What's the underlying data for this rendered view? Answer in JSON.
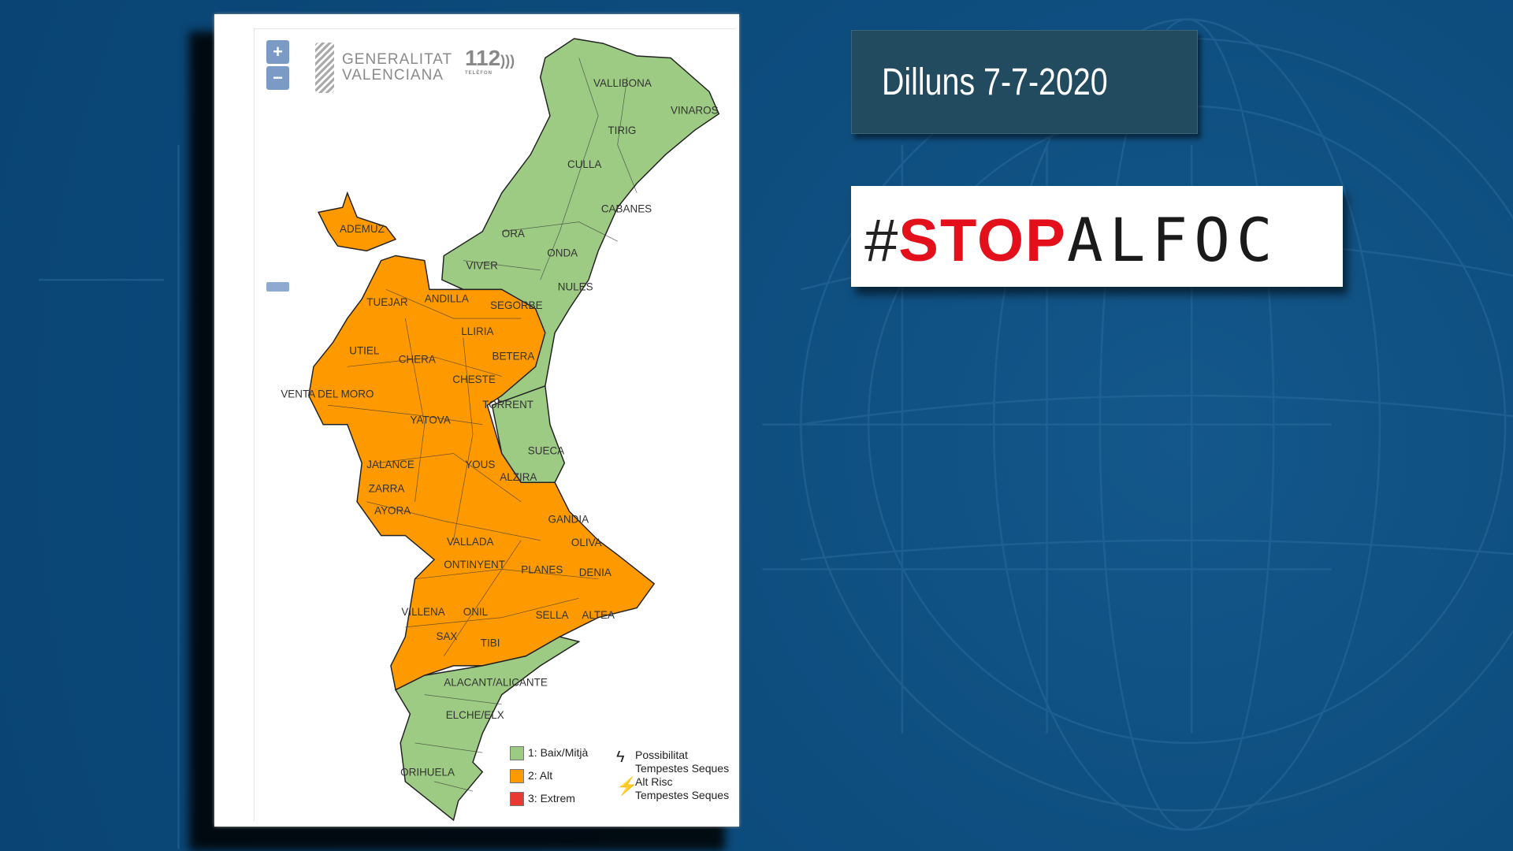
{
  "date_label": "Dilluns 7-7-2020",
  "campaign": {
    "hash": "#",
    "red": "STOP",
    "black": "ALFOC"
  },
  "logos": {
    "generalitat_line1": "GENERALITAT",
    "generalitat_line2": "VALENCIANA",
    "phone": "112",
    "phone_sub": "TELÈFON"
  },
  "map_controls": {
    "zoom_in": "+",
    "zoom_out": "−"
  },
  "colors": {
    "level1": "#9dcb84",
    "level2": "#ff9900",
    "level3": "#e83a32",
    "background": "#0d4d7e",
    "date_box": "#234b60",
    "stop_red": "#e3101b"
  },
  "legend": {
    "levels": [
      {
        "label": "1: Baix/Mitjà",
        "color": "#9dcb84"
      },
      {
        "label": "2: Alt",
        "color": "#ff9900"
      },
      {
        "label": "3: Extrem",
        "color": "#e83a32"
      }
    ],
    "storm_possible": [
      "Possibilitat",
      "Tempestes Seques"
    ],
    "storm_high": [
      "Alt Risc",
      "Tempestes Seques"
    ]
  },
  "places": [
    "VALLIBONA",
    "VINAROS",
    "TIRIG",
    "CULLA",
    "CABANES",
    "ADEMUZ",
    "ORA",
    "ONDA",
    "VIVER",
    "NULES",
    "ANDILLA",
    "SEGORBE",
    "TUEJAR",
    "LLIRIA",
    "UTIEL",
    "BETERA",
    "CHERA",
    "CHESTE",
    "VENTA DEL MORO",
    "TORRENT",
    "YATOVA",
    "SUECA",
    "JALANCE",
    "YOUS",
    "ALZIRA",
    "ZARRA",
    "AYORA",
    "GANDIA",
    "VALLADA",
    "OLIVA",
    "ONTINYENT",
    "DENIA",
    "PLANES",
    "VILLENA",
    "ONIL",
    "SELLA",
    "ALTEA",
    "SAX",
    "TIBI",
    "ALACANT/ALICANTE",
    "ELCHE/ELX",
    "ORIHUELA"
  ]
}
